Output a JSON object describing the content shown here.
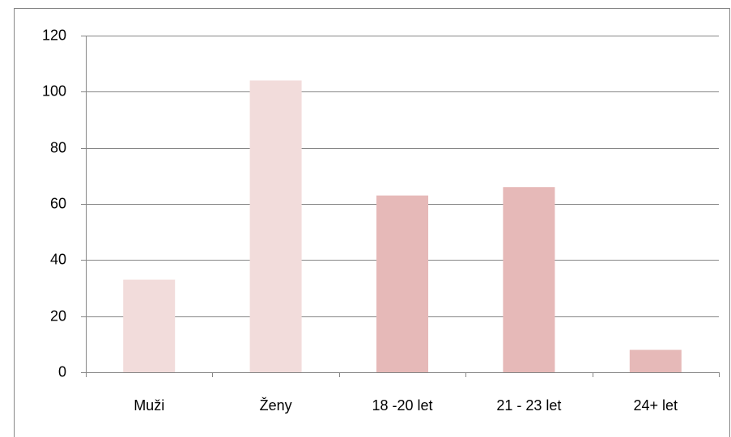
{
  "chart_data": {
    "type": "bar",
    "categories": [
      "Muži",
      "Ženy",
      "18 -20 let",
      "21 - 23 let",
      "24+ let"
    ],
    "values": [
      33,
      104,
      63,
      66,
      8
    ],
    "colors": [
      "#f2dcdb",
      "#f2dcdb",
      "#e6b9b8",
      "#e6b9b8",
      "#e6b9b8"
    ],
    "ylim": [
      0,
      120
    ],
    "yticks": [
      0,
      20,
      40,
      60,
      80,
      100,
      120
    ],
    "grid": true
  }
}
